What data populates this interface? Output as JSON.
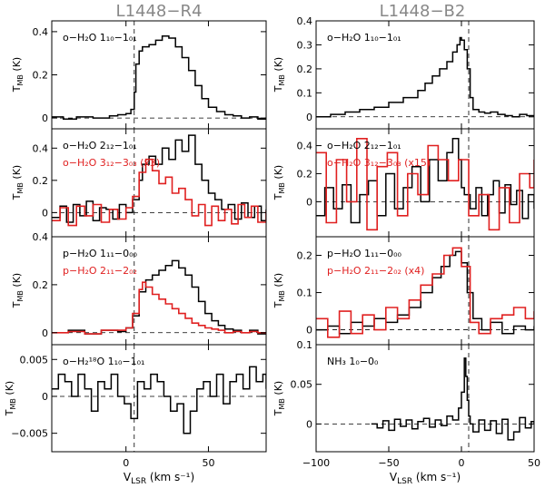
{
  "figure": {
    "col_titles": [
      "L1448−R4",
      "L1448−B2"
    ],
    "y_unit": "(K)",
    "x_unit": "(km s⁻¹)"
  },
  "chart_data": [
    {
      "type": "line",
      "id": "r4-1",
      "ylim": [
        -0.05,
        0.45
      ],
      "xlim": [
        -45,
        85
      ],
      "yticks": [
        0,
        0.2,
        0.4
      ],
      "ytick_labels": [
        "0",
        "0.2",
        "0.4"
      ],
      "xticks": [
        0,
        50
      ],
      "vline": 5,
      "hline": 0,
      "labels": [
        {
          "text": "o−H₂O 1₁₀−1₀₁",
          "color": "#000000"
        }
      ],
      "series": [
        {
          "name": "o-H2O 110-101",
          "color": "#000000",
          "x": [
            -45,
            -38,
            -30,
            -20,
            -10,
            -5,
            0,
            3,
            5,
            6,
            8,
            10,
            14,
            18,
            22,
            26,
            30,
            34,
            38,
            42,
            46,
            50,
            55,
            60,
            65,
            70,
            75,
            80,
            85
          ],
          "y": [
            0.005,
            -0.005,
            0.005,
            0.0,
            0.01,
            0.015,
            0.02,
            0.04,
            0.12,
            0.25,
            0.31,
            0.33,
            0.34,
            0.36,
            0.38,
            0.37,
            0.33,
            0.28,
            0.22,
            0.15,
            0.09,
            0.05,
            0.03,
            0.015,
            0.01,
            0.0,
            0.005,
            -0.005,
            0.0
          ]
        }
      ]
    },
    {
      "type": "line",
      "id": "r4-2",
      "ylim": [
        -0.15,
        0.52
      ],
      "xlim": [
        -45,
        85
      ],
      "yticks": [
        0,
        0.2,
        0.4
      ],
      "ytick_labels": [
        "0",
        "0.2",
        "0.4"
      ],
      "xticks": [
        0,
        50
      ],
      "vline": 5,
      "hline": 0,
      "labels": [
        {
          "text": "o−H₂O 2₁₂−1₀₁",
          "color": "#000000"
        },
        {
          "text": "o−H₂O 3₁₂−3₀₃ (x3)",
          "color": "#e02020"
        }
      ],
      "series": [
        {
          "name": "o-H2O 212-101",
          "color": "#000000",
          "x": [
            -45,
            -40,
            -36,
            -32,
            -28,
            -24,
            -20,
            -16,
            -12,
            -8,
            -4,
            0,
            4,
            8,
            10,
            14,
            18,
            22,
            26,
            30,
            34,
            38,
            42,
            46,
            50,
            54,
            58,
            62,
            66,
            70,
            74,
            78,
            82,
            85
          ],
          "y": [
            -0.03,
            0.04,
            -0.06,
            0.05,
            -0.02,
            0.07,
            -0.05,
            0.03,
            0.02,
            -0.04,
            0.05,
            0.0,
            0.08,
            0.2,
            0.3,
            0.35,
            0.3,
            0.4,
            0.33,
            0.45,
            0.38,
            0.48,
            0.3,
            0.2,
            0.12,
            0.08,
            0.02,
            0.05,
            -0.04,
            0.06,
            -0.03,
            0.04,
            -0.05,
            0.02
          ]
        },
        {
          "name": "o-H2O 312-303 (x3)",
          "color": "#e02020",
          "x": [
            -45,
            -40,
            -35,
            -30,
            -25,
            -20,
            -15,
            -10,
            -5,
            0,
            4,
            8,
            12,
            16,
            20,
            24,
            28,
            32,
            36,
            40,
            44,
            48,
            52,
            56,
            60,
            64,
            68,
            72,
            76,
            80,
            85
          ],
          "y": [
            -0.05,
            0.03,
            -0.08,
            0.04,
            -0.02,
            0.05,
            -0.06,
            0.02,
            -0.04,
            0.03,
            0.1,
            0.25,
            0.33,
            0.26,
            0.18,
            0.22,
            0.12,
            0.15,
            0.08,
            -0.02,
            0.05,
            -0.08,
            0.04,
            -0.05,
            0.02,
            -0.07,
            0.05,
            -0.03,
            0.04,
            -0.06,
            0.01
          ]
        }
      ]
    },
    {
      "type": "line",
      "id": "r4-3",
      "ylim": [
        -0.05,
        0.4
      ],
      "xlim": [
        -45,
        85
      ],
      "yticks": [
        0,
        0.2,
        0.4
      ],
      "ytick_labels": [
        "0",
        "0.2",
        "0.4"
      ],
      "xticks": [
        0,
        50
      ],
      "vline": 5,
      "hline": 0,
      "labels": [
        {
          "text": "p−H₂O 1₁₁−0₀₀",
          "color": "#000000"
        },
        {
          "text": "p−H₂O 2₁₁−2₀₂",
          "color": "#e02020"
        }
      ],
      "series": [
        {
          "name": "p-H2O 111-000",
          "color": "#000000",
          "x": [
            -45,
            -35,
            -25,
            -15,
            -5,
            0,
            4,
            8,
            12,
            16,
            20,
            24,
            28,
            32,
            36,
            40,
            44,
            48,
            52,
            56,
            60,
            65,
            70,
            75,
            80,
            85
          ],
          "y": [
            0.0,
            0.01,
            -0.005,
            0.01,
            0.005,
            0.02,
            0.07,
            0.17,
            0.22,
            0.24,
            0.26,
            0.28,
            0.3,
            0.27,
            0.24,
            0.19,
            0.13,
            0.08,
            0.05,
            0.03,
            0.015,
            0.01,
            0.0,
            0.01,
            -0.005,
            0.0
          ]
        },
        {
          "name": "p-H2O 211-202",
          "color": "#e02020",
          "x": [
            -45,
            -35,
            -25,
            -15,
            -5,
            0,
            4,
            8,
            10,
            12,
            16,
            20,
            24,
            28,
            32,
            36,
            40,
            44,
            48,
            52,
            56,
            60,
            65,
            70,
            75,
            80,
            85
          ],
          "y": [
            0.0,
            0.005,
            -0.005,
            0.01,
            0.01,
            0.02,
            0.08,
            0.18,
            0.21,
            0.19,
            0.16,
            0.14,
            0.12,
            0.1,
            0.08,
            0.06,
            0.04,
            0.03,
            0.02,
            0.015,
            0.01,
            0.0,
            0.005,
            0.0,
            0.005,
            0.0,
            -0.005
          ]
        }
      ]
    },
    {
      "type": "line",
      "id": "r4-4",
      "ylim": [
        -0.0075,
        0.007
      ],
      "xlim": [
        -45,
        85
      ],
      "yticks": [
        -0.005,
        0,
        0.005
      ],
      "ytick_labels": [
        "−0.005",
        "0",
        "0.005"
      ],
      "xticks": [
        0,
        50
      ],
      "xtick_labels": [
        "0",
        "50"
      ],
      "vline": 5,
      "hline": 0,
      "labels": [
        {
          "text": "o−H₂¹⁸O 1₁₀−1₀₁",
          "color": "#000000"
        }
      ],
      "series": [
        {
          "name": "o-H2-18O 110-101",
          "color": "#000000",
          "x": [
            -45,
            -41,
            -37,
            -33,
            -29,
            -25,
            -21,
            -17,
            -13,
            -9,
            -5,
            -1,
            3,
            7,
            11,
            15,
            19,
            23,
            27,
            31,
            35,
            39,
            43,
            47,
            51,
            55,
            59,
            63,
            67,
            71,
            75,
            79,
            83,
            85
          ],
          "y": [
            0.001,
            0.003,
            0.002,
            0.0,
            0.003,
            0.001,
            -0.002,
            0.002,
            0.001,
            0.003,
            0.0,
            -0.001,
            -0.003,
            0.002,
            0.001,
            0.003,
            0.002,
            0.0,
            -0.002,
            -0.001,
            -0.005,
            -0.002,
            0.001,
            0.002,
            0.0,
            0.003,
            -0.001,
            0.002,
            0.003,
            0.001,
            0.004,
            0.002,
            0.003,
            0.001
          ]
        }
      ]
    },
    {
      "type": "line",
      "id": "b2-1",
      "ylim": [
        -0.05,
        0.4
      ],
      "xlim": [
        -100,
        50
      ],
      "yticks": [
        0,
        0.1,
        0.2,
        0.3,
        0.4
      ],
      "ytick_labels": [
        "0",
        "0.1",
        "0.2",
        "0.3",
        "0.4"
      ],
      "xticks": [
        -100,
        -50,
        0,
        50
      ],
      "vline": 5,
      "hline": 0,
      "labels": [
        {
          "text": "o−H₂O 1₁₀−1₀₁",
          "color": "#000000"
        }
      ],
      "series": [
        {
          "name": "o-H2O 110-101",
          "color": "#000000",
          "x": [
            -100,
            -90,
            -80,
            -70,
            -60,
            -50,
            -40,
            -30,
            -25,
            -20,
            -15,
            -10,
            -6,
            -3,
            -1,
            0,
            2,
            4,
            6,
            8,
            12,
            16,
            20,
            25,
            30,
            35,
            40,
            45,
            50
          ],
          "y": [
            0.0,
            0.01,
            0.02,
            0.03,
            0.04,
            0.06,
            0.08,
            0.11,
            0.14,
            0.17,
            0.2,
            0.23,
            0.27,
            0.3,
            0.33,
            0.32,
            0.28,
            0.2,
            0.08,
            0.03,
            0.02,
            0.015,
            0.02,
            0.01,
            0.005,
            0.0,
            0.01,
            0.005,
            0.0
          ]
        }
      ]
    },
    {
      "type": "line",
      "id": "b2-2",
      "ylim": [
        -0.25,
        0.52
      ],
      "xlim": [
        -100,
        50
      ],
      "yticks": [
        0,
        0.2,
        0.4
      ],
      "ytick_labels": [
        "0",
        "0.2",
        "0.4"
      ],
      "xticks": [
        -100,
        -50,
        0,
        50
      ],
      "vline": 5,
      "hline": 0,
      "labels": [
        {
          "text": "o−H₂O 2₁₂−1₀₁",
          "color": "#000000"
        },
        {
          "text": "o−H₂O 3₁₂−3₀₃ (x15)",
          "color": "#e02020"
        }
      ],
      "series": [
        {
          "name": "o-H2O 212-101",
          "color": "#000000",
          "x": [
            -100,
            -94,
            -88,
            -82,
            -76,
            -70,
            -64,
            -58,
            -52,
            -46,
            -40,
            -34,
            -28,
            -22,
            -16,
            -10,
            -6,
            -2,
            0,
            2,
            6,
            10,
            14,
            18,
            22,
            26,
            30,
            34,
            38,
            42,
            46,
            50
          ],
          "y": [
            -0.1,
            0.1,
            -0.05,
            0.12,
            -0.15,
            0.05,
            0.15,
            -0.1,
            0.2,
            -0.05,
            0.1,
            0.25,
            0.0,
            0.3,
            0.15,
            0.35,
            0.45,
            0.3,
            0.1,
            0.05,
            -0.05,
            0.1,
            -0.1,
            0.05,
            0.15,
            -0.08,
            0.12,
            -0.02,
            0.08,
            -0.12,
            0.05,
            -0.05
          ]
        },
        {
          "name": "o-H2O 312-303 (x15)",
          "color": "#e02020",
          "x": [
            -100,
            -93,
            -86,
            -79,
            -72,
            -65,
            -58,
            -51,
            -44,
            -37,
            -30,
            -23,
            -16,
            -9,
            -2,
            5,
            12,
            19,
            26,
            33,
            40,
            47,
            50
          ],
          "y": [
            0.35,
            -0.15,
            0.3,
            0.0,
            0.45,
            -0.2,
            0.25,
            0.35,
            -0.1,
            0.2,
            0.05,
            0.4,
            0.3,
            0.15,
            0.3,
            -0.1,
            0.05,
            -0.2,
            0.1,
            -0.15,
            0.2,
            0.1,
            0.3
          ]
        }
      ]
    },
    {
      "type": "line",
      "id": "b2-3",
      "ylim": [
        -0.04,
        0.25
      ],
      "xlim": [
        -100,
        50
      ],
      "yticks": [
        0,
        0.1,
        0.2
      ],
      "ytick_labels": [
        "0",
        "0.1",
        "0.2"
      ],
      "xticks": [
        -100,
        -50,
        0,
        50
      ],
      "vline": 5,
      "hline": 0,
      "labels": [
        {
          "text": "p−H₂O 1₁₁−0₀₀",
          "color": "#000000"
        },
        {
          "text": "p−H₂O 2₁₁−2₀₂ (x4)",
          "color": "#e02020"
        }
      ],
      "series": [
        {
          "name": "p-H2O 111-000",
          "color": "#000000",
          "x": [
            -100,
            -92,
            -84,
            -76,
            -68,
            -60,
            -52,
            -44,
            -36,
            -28,
            -20,
            -14,
            -8,
            -4,
            0,
            4,
            8,
            14,
            20,
            28,
            36,
            44,
            50
          ],
          "y": [
            0.0,
            0.01,
            -0.01,
            0.02,
            0.01,
            0.03,
            0.02,
            0.04,
            0.06,
            0.1,
            0.14,
            0.17,
            0.2,
            0.21,
            0.18,
            0.1,
            0.03,
            0.0,
            0.02,
            -0.01,
            0.01,
            0.0,
            0.01
          ]
        },
        {
          "name": "p-H2O 211-202 (x4)",
          "color": "#e02020",
          "x": [
            -100,
            -92,
            -84,
            -76,
            -68,
            -60,
            -52,
            -44,
            -36,
            -28,
            -20,
            -12,
            -6,
            0,
            6,
            12,
            20,
            28,
            36,
            44,
            50
          ],
          "y": [
            0.03,
            -0.02,
            0.05,
            -0.01,
            0.04,
            0.0,
            0.06,
            0.03,
            0.08,
            0.12,
            0.15,
            0.2,
            0.22,
            0.17,
            0.02,
            -0.01,
            0.03,
            0.04,
            0.06,
            0.03,
            0.05
          ]
        }
      ]
    },
    {
      "type": "line",
      "id": "b2-4",
      "ylim": [
        -0.035,
        0.1
      ],
      "xlim": [
        -100,
        50
      ],
      "yticks": [
        0,
        0.05,
        0.1
      ],
      "ytick_labels": [
        "0",
        "0.05",
        "0.1"
      ],
      "xticks": [
        -100,
        -50,
        0,
        50
      ],
      "xtick_labels": [
        "−100",
        "−50",
        "0",
        "50"
      ],
      "vline": 5,
      "hline": 0,
      "labels": [
        {
          "text": "NH₃ 1₀−0₀",
          "color": "#000000"
        }
      ],
      "series": [
        {
          "name": "NH3 10-00",
          "color": "#000000",
          "x": [
            -62,
            -58,
            -54,
            -50,
            -46,
            -42,
            -38,
            -34,
            -30,
            -26,
            -22,
            -18,
            -14,
            -10,
            -6,
            -2,
            0,
            2,
            3,
            4,
            5,
            6,
            8,
            12,
            16,
            20,
            24,
            28,
            32,
            36,
            40,
            44,
            48,
            50
          ],
          "y": [
            0.0,
            -0.005,
            0.004,
            -0.008,
            0.006,
            -0.003,
            0.005,
            -0.006,
            0.003,
            0.007,
            -0.004,
            0.005,
            -0.002,
            0.01,
            0.005,
            0.02,
            0.04,
            0.083,
            0.06,
            0.03,
            0.01,
            0.0,
            -0.01,
            0.005,
            -0.008,
            0.004,
            -0.012,
            0.006,
            -0.02,
            -0.01,
            0.008,
            -0.005,
            0.003,
            0.0
          ]
        }
      ]
    }
  ]
}
